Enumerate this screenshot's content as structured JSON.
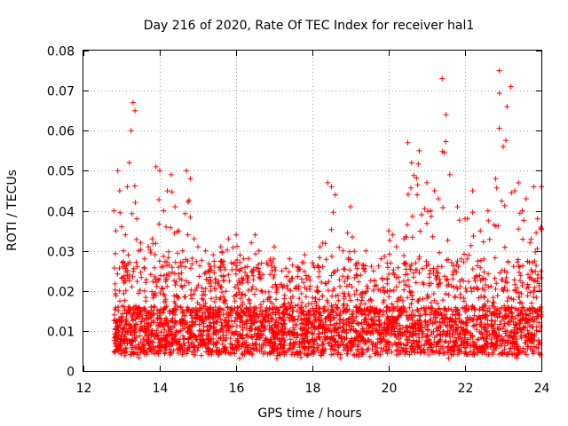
{
  "chart_data": {
    "type": "scatter",
    "title": "Day 216 of 2020, Rate Of TEC Index for receiver hal1",
    "xlabel": "GPS time / hours",
    "ylabel": "ROTI / TECUs",
    "xlim": [
      12,
      24
    ],
    "ylim": [
      0,
      0.08
    ],
    "xticks": [
      "12",
      "14",
      "16",
      "18",
      "20",
      "22",
      "24"
    ],
    "yticks": [
      "0",
      "0.01",
      "0.02",
      "0.03",
      "0.04",
      "0.05",
      "0.06",
      "0.07",
      "0.08"
    ],
    "grid": true,
    "marker": "+",
    "color": "#ff0000",
    "series": [
      {
        "name": "ROTI",
        "x": [
          12.8,
          12.85,
          12.9,
          12.95,
          13.0,
          13.05,
          13.1,
          13.15,
          13.2,
          13.25,
          13.3,
          13.35,
          13.4,
          13.45,
          13.5,
          13.6,
          13.7,
          13.8,
          13.9,
          14.0,
          14.1,
          14.2,
          14.3,
          14.4,
          14.5,
          14.6,
          14.7,
          14.8,
          14.9,
          15.0,
          15.2,
          15.4,
          15.6,
          15.8,
          16.0,
          16.2,
          16.4,
          16.5,
          16.6,
          16.8,
          17.0,
          17.2,
          17.4,
          17.6,
          17.8,
          18.0,
          18.2,
          18.4,
          18.5,
          18.6,
          18.8,
          19.0,
          19.2,
          19.4,
          19.6,
          19.8,
          20.0,
          20.1,
          20.2,
          20.4,
          20.5,
          20.6,
          20.8,
          21.0,
          21.1,
          21.2,
          21.3,
          21.4,
          21.5,
          21.6,
          21.8,
          22.0,
          22.2,
          22.4,
          22.6,
          22.8,
          22.9,
          23.0,
          23.1,
          23.2,
          23.3,
          23.4,
          23.5,
          23.6,
          23.7,
          23.8,
          23.9,
          24.0
        ],
        "y": [
          0.04,
          0.035,
          0.05,
          0.045,
          0.036,
          0.03,
          0.034,
          0.046,
          0.052,
          0.06,
          0.067,
          0.065,
          0.038,
          0.03,
          0.032,
          0.028,
          0.031,
          0.033,
          0.051,
          0.05,
          0.04,
          0.045,
          0.049,
          0.041,
          0.035,
          0.03,
          0.05,
          0.048,
          0.033,
          0.031,
          0.03,
          0.029,
          0.031,
          0.033,
          0.034,
          0.028,
          0.032,
          0.034,
          0.03,
          0.027,
          0.031,
          0.025,
          0.028,
          0.026,
          0.029,
          0.027,
          0.031,
          0.047,
          0.046,
          0.044,
          0.03,
          0.041,
          0.027,
          0.03,
          0.025,
          0.028,
          0.035,
          0.034,
          0.031,
          0.033,
          0.057,
          0.052,
          0.055,
          0.047,
          0.04,
          0.045,
          0.043,
          0.073,
          0.064,
          0.049,
          0.041,
          0.038,
          0.045,
          0.035,
          0.04,
          0.048,
          0.075,
          0.056,
          0.066,
          0.071,
          0.045,
          0.047,
          0.04,
          0.043,
          0.032,
          0.046,
          0.038,
          0.046
        ]
      }
    ]
  }
}
